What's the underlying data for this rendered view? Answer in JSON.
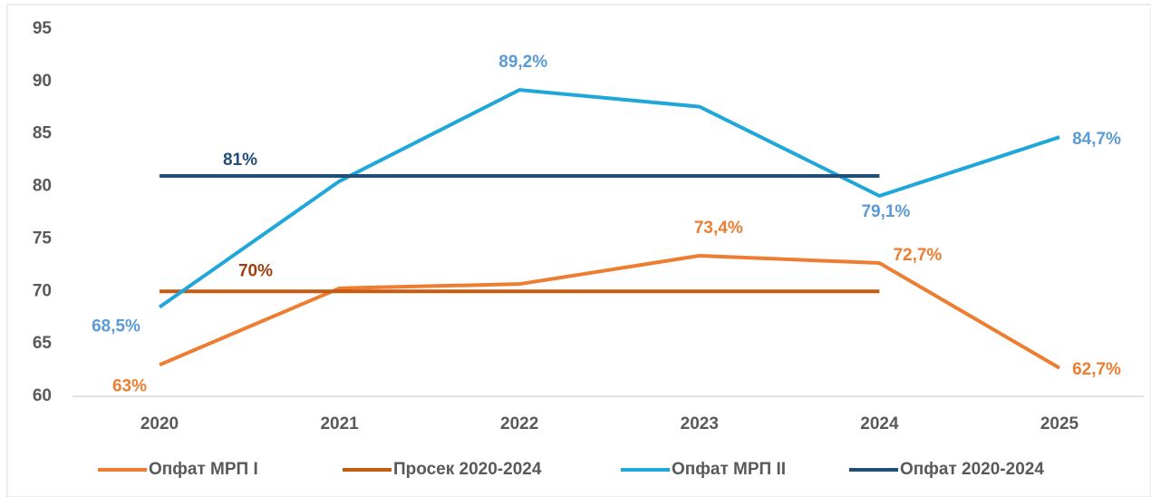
{
  "chart_data": {
    "type": "line",
    "categories": [
      "2020",
      "2021",
      "2022",
      "2023",
      "2024",
      "2025"
    ],
    "series": [
      {
        "name": "Опфат МРП I",
        "color": "#ed7d31",
        "label_color": "#ed7d31",
        "values": [
          63,
          70.3,
          70.7,
          73.4,
          72.7,
          62.7
        ],
        "value_labels": [
          "63%",
          null,
          null,
          "73,4%",
          "72,7%",
          "62,7%"
        ]
      },
      {
        "name": "Просек 2020-2024",
        "color": "#c55a11",
        "label_color": "#9e3f10",
        "values": [
          70,
          70,
          70,
          70,
          70,
          null
        ],
        "value_labels": [
          "70%",
          null,
          null,
          null,
          null,
          null
        ]
      },
      {
        "name": "Опфат МРП II",
        "color": "#1fa7d9",
        "label_color": "#5b9bd5",
        "values": [
          68.5,
          80.5,
          89.2,
          87.6,
          79.1,
          84.7
        ],
        "value_labels": [
          "68,5%",
          null,
          "89,2%",
          null,
          "79,1%",
          "84,7%"
        ]
      },
      {
        "name": "Опфат 2020-2024",
        "color": "#1f4e79",
        "label_color": "#1f4e79",
        "values": [
          81,
          81,
          81,
          81,
          81,
          null
        ],
        "value_labels": [
          "81%",
          null,
          null,
          null,
          null,
          null
        ]
      }
    ],
    "ylim": [
      60,
      95
    ],
    "yticks": [
      60,
      65,
      70,
      75,
      80,
      85,
      90,
      95
    ],
    "grid": false,
    "legend": "bottom"
  }
}
